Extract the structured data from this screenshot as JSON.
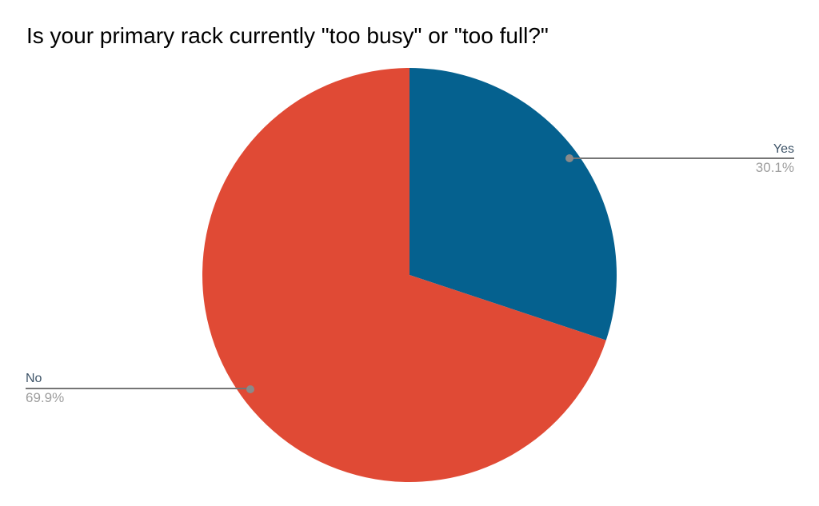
{
  "chart_data": {
    "type": "pie",
    "title": "Is your primary rack currently \"too busy\" or \"too full?\"",
    "slices": [
      {
        "label": "Yes",
        "value": 30.1,
        "percent_label": "30.1%",
        "color": "#05618f"
      },
      {
        "label": "No",
        "value": 69.9,
        "percent_label": "69.9%",
        "color": "#e04a35"
      }
    ],
    "start_angle_deg": 0,
    "direction": "clockwise",
    "labels_style": "outside-callouts",
    "legend_position": "none",
    "title_color": "#000000",
    "label_color": "#3e5468",
    "percent_color": "#9e9e9e",
    "callout_line_color": "#757575",
    "callout_dot_color": "#8a8a8a",
    "background_color": "#ffffff"
  }
}
